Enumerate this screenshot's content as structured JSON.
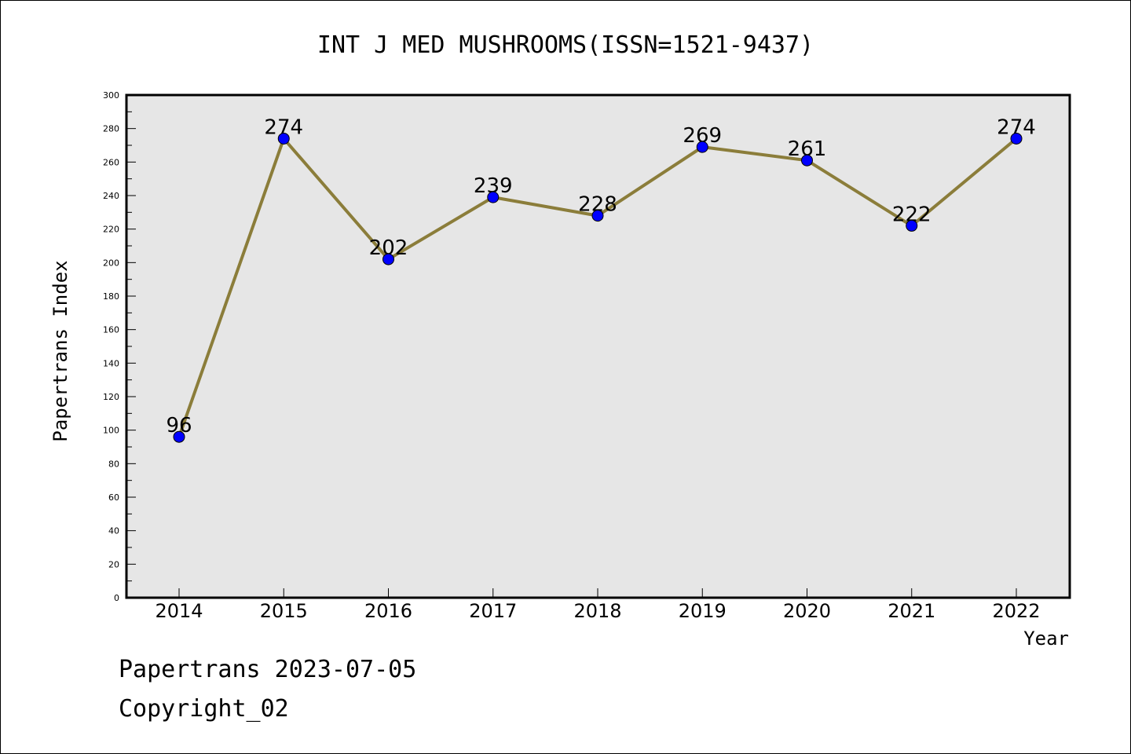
{
  "chart_data": {
    "type": "line",
    "title": "INT J MED MUSHROOMS(ISSN=1521-9437)",
    "xlabel": "Year",
    "ylabel": "Papertrans Index",
    "categories": [
      "2014",
      "2015",
      "2016",
      "2017",
      "2018",
      "2019",
      "2020",
      "2021",
      "2022"
    ],
    "values": [
      96,
      274,
      202,
      239,
      228,
      269,
      261,
      222,
      274
    ],
    "ylim": [
      0,
      300
    ],
    "yticks": [
      0,
      20,
      40,
      60,
      80,
      100,
      120,
      140,
      160,
      180,
      200,
      220,
      240,
      260,
      280,
      300
    ],
    "data_labels": [
      "96",
      "274",
      "202",
      "239",
      "228",
      "269",
      "261",
      "222",
      "274"
    ],
    "grid": false,
    "line_color": "#8b7d3a",
    "marker_color": "#0000ff",
    "plot_background": "#e6e6e6"
  },
  "footer": {
    "date": "Papertrans 2023-07-05",
    "copyright": "Copyright_02"
  }
}
